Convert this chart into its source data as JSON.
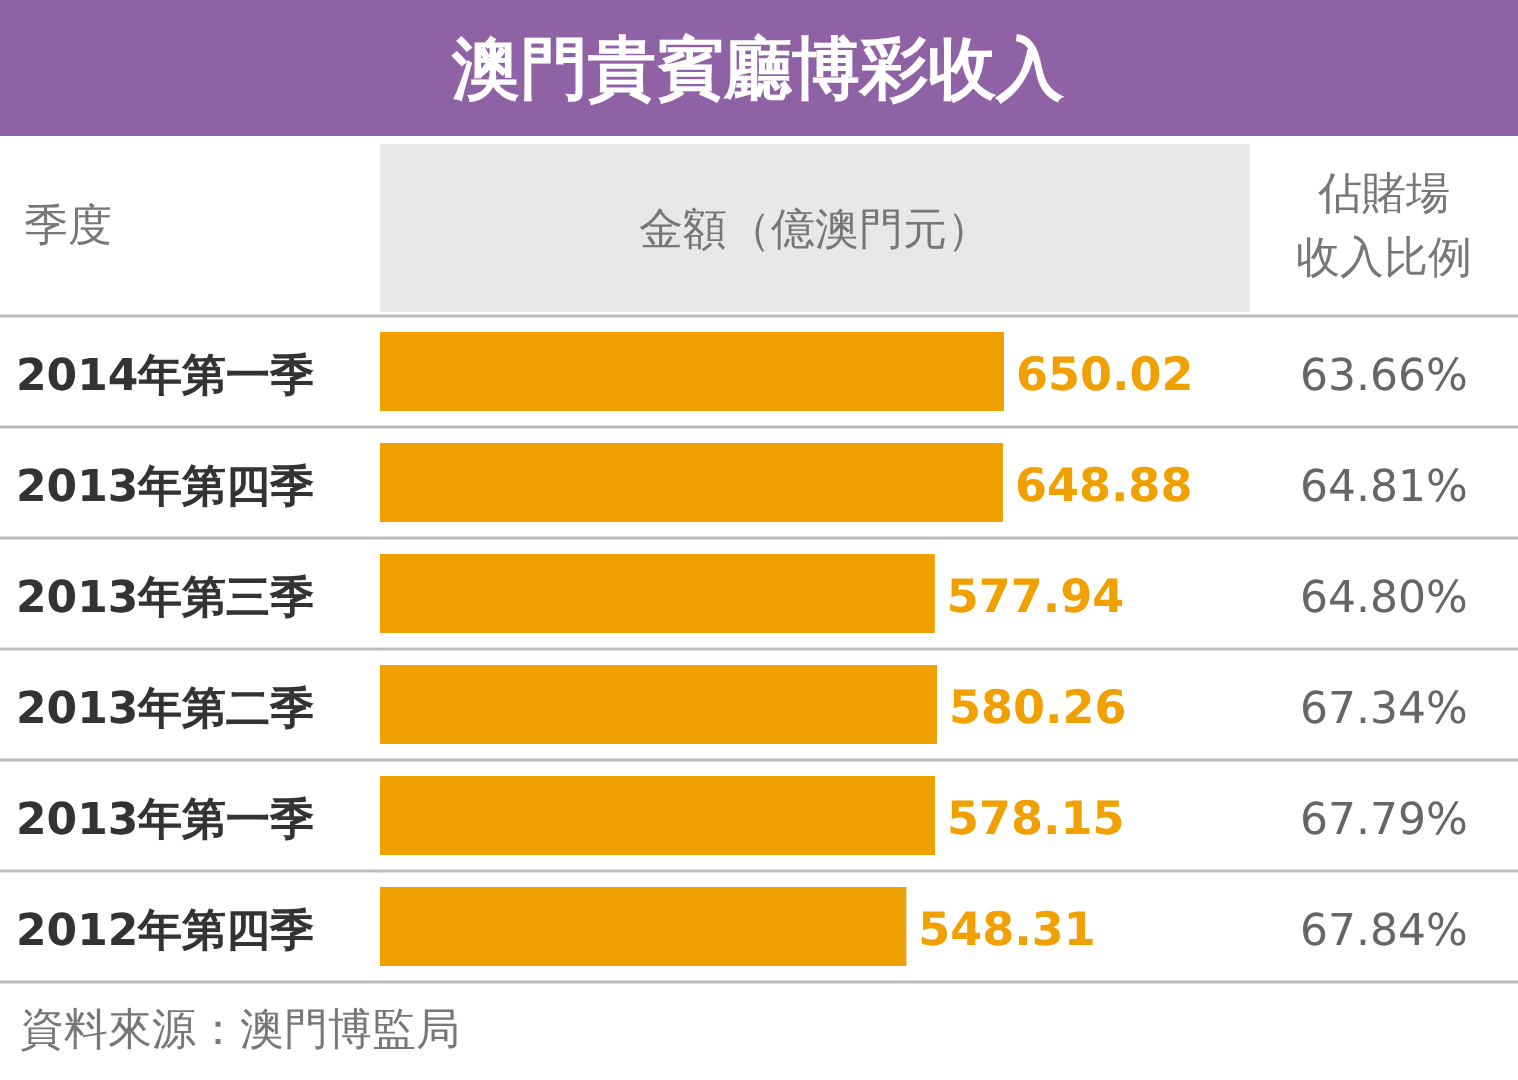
{
  "chart_data": {
    "type": "bar",
    "orientation": "horizontal",
    "title": "澳門貴賓廳博彩收入",
    "ylabel": "季度",
    "xlabel": "金額（億澳門元）",
    "categories": [
      "2014年第一季",
      "2013年第四季",
      "2013年第三季",
      "2013年第二季",
      "2013年第一季",
      "2012年第四季"
    ],
    "values": [
      650.02,
      648.88,
      577.94,
      580.26,
      578.15,
      548.31
    ],
    "color": "#f0a000",
    "data_labels": true,
    "annotations": [
      "佔賭場收入比例",
      "63.66%",
      "64.81%",
      "64.80%",
      "67.34%",
      "67.79%",
      "67.84%",
      "資料來源：澳門博監局"
    ]
  }
}
